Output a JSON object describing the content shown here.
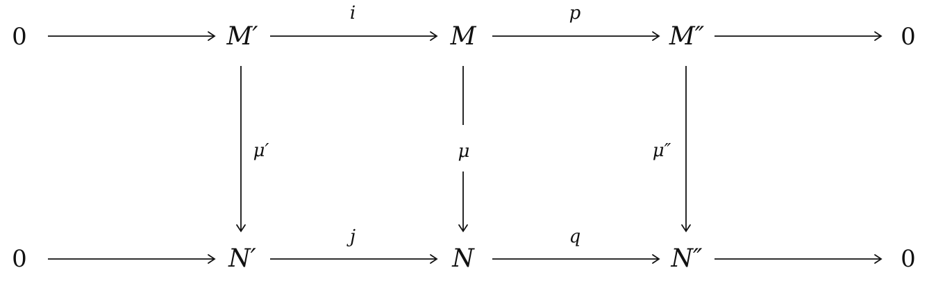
{
  "diagram": {
    "kind": "commutative diagram",
    "top_row": {
      "left_zero": "0",
      "m_prime": "M′",
      "m": "M",
      "m_double_prime": "M″",
      "right_zero": "0"
    },
    "bottom_row": {
      "left_zero": "0",
      "n_prime": "N′",
      "n": "N",
      "n_double_prime": "N″",
      "right_zero": "0"
    },
    "horizontal_labels": {
      "i": "i",
      "p": "p",
      "j": "j",
      "q": "q"
    },
    "vertical_labels": {
      "mu_prime": "μ′",
      "mu": "μ",
      "mu_double_prime": "μ″"
    },
    "arrows": [
      {
        "from": "0",
        "to": "M′",
        "label": ""
      },
      {
        "from": "M′",
        "to": "M",
        "label": "i"
      },
      {
        "from": "M",
        "to": "M″",
        "label": "p"
      },
      {
        "from": "M″",
        "to": "0",
        "label": ""
      },
      {
        "from": "0",
        "to": "N′",
        "label": ""
      },
      {
        "from": "N′",
        "to": "N",
        "label": "j"
      },
      {
        "from": "N",
        "to": "N″",
        "label": "q"
      },
      {
        "from": "N″",
        "to": "0",
        "label": ""
      },
      {
        "from": "M′",
        "to": "N′",
        "label": "μ′"
      },
      {
        "from": "M",
        "to": "N",
        "label": "μ"
      },
      {
        "from": "M″",
        "to": "N″",
        "label": "μ″"
      }
    ]
  }
}
